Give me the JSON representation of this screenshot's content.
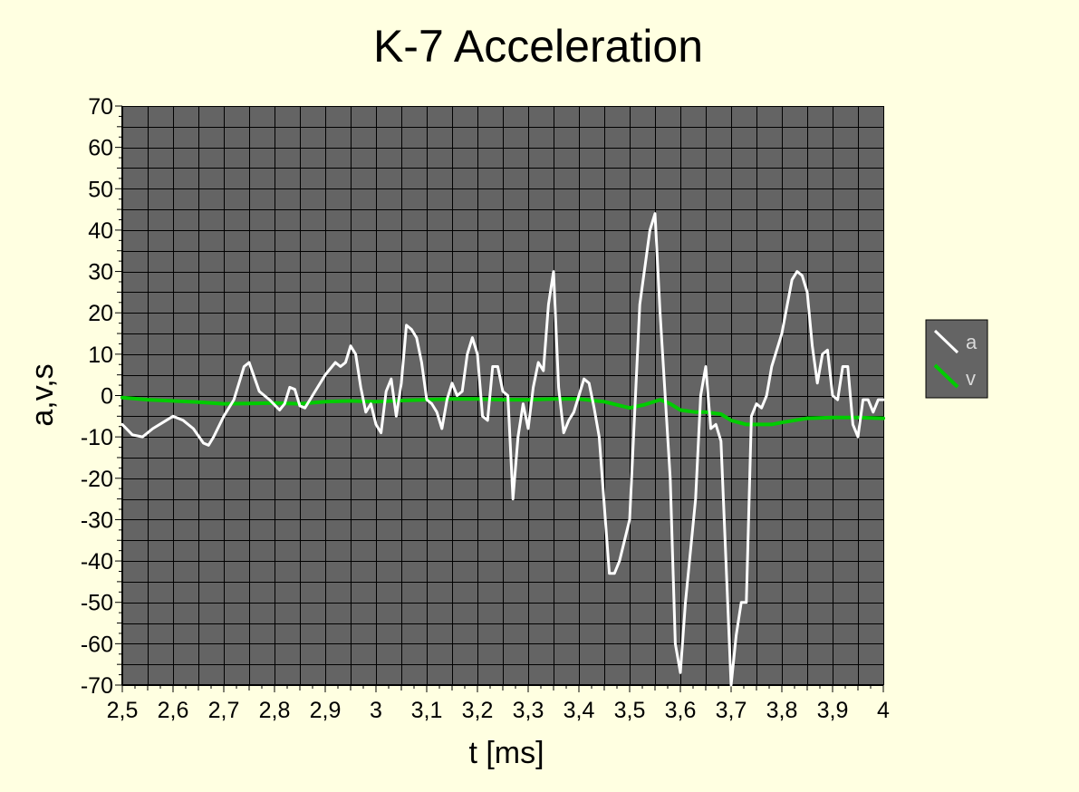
{
  "chart_data": {
    "type": "line",
    "title": "K-7 Acceleration",
    "xlabel": "t [ms]",
    "ylabel": "a,v,s",
    "xlim": [
      2.5,
      4.0
    ],
    "ylim": [
      -70,
      70
    ],
    "x_ticks": [
      "2,5",
      "2,6",
      "2,7",
      "2,8",
      "2,9",
      "3",
      "3,1",
      "3,2",
      "3,3",
      "3,4",
      "3,5",
      "3,6",
      "3,7",
      "3,8",
      "3,9",
      "4"
    ],
    "y_ticks": [
      "70",
      "60",
      "50",
      "40",
      "30",
      "20",
      "10",
      "0",
      "-10",
      "-20",
      "-30",
      "-40",
      "-50",
      "-60",
      "-70"
    ],
    "grid": true,
    "legend_position": "right",
    "background_color": "#ffffe1",
    "plot_background_color": "#646464",
    "series": [
      {
        "name": "a",
        "color": "#ffffff",
        "points": [
          [
            2.5,
            -7
          ],
          [
            2.52,
            -9.5
          ],
          [
            2.54,
            -10
          ],
          [
            2.56,
            -8
          ],
          [
            2.58,
            -6.5
          ],
          [
            2.6,
            -5
          ],
          [
            2.62,
            -6
          ],
          [
            2.64,
            -8
          ],
          [
            2.66,
            -11.5
          ],
          [
            2.67,
            -12
          ],
          [
            2.68,
            -10
          ],
          [
            2.7,
            -5
          ],
          [
            2.72,
            -1
          ],
          [
            2.73,
            3
          ],
          [
            2.74,
            7
          ],
          [
            2.75,
            8
          ],
          [
            2.77,
            1
          ],
          [
            2.79,
            -1
          ],
          [
            2.81,
            -3.5
          ],
          [
            2.82,
            -2
          ],
          [
            2.83,
            2
          ],
          [
            2.84,
            1.5
          ],
          [
            2.85,
            -2.5
          ],
          [
            2.86,
            -3
          ],
          [
            2.88,
            1
          ],
          [
            2.9,
            5
          ],
          [
            2.92,
            8
          ],
          [
            2.93,
            7
          ],
          [
            2.94,
            8
          ],
          [
            2.95,
            12
          ],
          [
            2.96,
            10
          ],
          [
            2.97,
            2
          ],
          [
            2.98,
            -4
          ],
          [
            2.99,
            -2
          ],
          [
            3.0,
            -7
          ],
          [
            3.01,
            -9
          ],
          [
            3.02,
            1
          ],
          [
            3.03,
            4
          ],
          [
            3.04,
            -5
          ],
          [
            3.05,
            3
          ],
          [
            3.06,
            17
          ],
          [
            3.07,
            16
          ],
          [
            3.08,
            14
          ],
          [
            3.09,
            8
          ],
          [
            3.1,
            -1
          ],
          [
            3.11,
            -2
          ],
          [
            3.12,
            -4
          ],
          [
            3.13,
            -8
          ],
          [
            3.14,
            -1
          ],
          [
            3.15,
            3
          ],
          [
            3.16,
            0
          ],
          [
            3.17,
            1
          ],
          [
            3.18,
            10
          ],
          [
            3.19,
            14
          ],
          [
            3.2,
            10
          ],
          [
            3.21,
            -5
          ],
          [
            3.22,
            -6
          ],
          [
            3.23,
            7
          ],
          [
            3.24,
            7
          ],
          [
            3.25,
            1
          ],
          [
            3.26,
            0
          ],
          [
            3.27,
            -25
          ],
          [
            3.28,
            -10
          ],
          [
            3.29,
            -2
          ],
          [
            3.3,
            -8
          ],
          [
            3.31,
            2
          ],
          [
            3.32,
            8
          ],
          [
            3.33,
            6
          ],
          [
            3.34,
            22
          ],
          [
            3.35,
            30
          ],
          [
            3.36,
            2
          ],
          [
            3.37,
            -9
          ],
          [
            3.38,
            -6
          ],
          [
            3.39,
            -4
          ],
          [
            3.4,
            0
          ],
          [
            3.41,
            4
          ],
          [
            3.42,
            3
          ],
          [
            3.43,
            -3
          ],
          [
            3.44,
            -10
          ],
          [
            3.46,
            -43
          ],
          [
            3.47,
            -43
          ],
          [
            3.48,
            -40
          ],
          [
            3.5,
            -30
          ],
          [
            3.52,
            22
          ],
          [
            3.54,
            40
          ],
          [
            3.55,
            44
          ],
          [
            3.56,
            20
          ],
          [
            3.58,
            -20
          ],
          [
            3.59,
            -60
          ],
          [
            3.6,
            -67
          ],
          [
            3.61,
            -50
          ],
          [
            3.63,
            -25
          ],
          [
            3.64,
            0
          ],
          [
            3.65,
            7
          ],
          [
            3.66,
            -8
          ],
          [
            3.67,
            -7
          ],
          [
            3.68,
            -11
          ],
          [
            3.7,
            -70
          ],
          [
            3.71,
            -58
          ],
          [
            3.72,
            -50
          ],
          [
            3.73,
            -50
          ],
          [
            3.74,
            -5
          ],
          [
            3.75,
            -2
          ],
          [
            3.76,
            -3
          ],
          [
            3.77,
            0
          ],
          [
            3.78,
            7
          ],
          [
            3.8,
            15
          ],
          [
            3.82,
            28
          ],
          [
            3.83,
            30
          ],
          [
            3.84,
            29
          ],
          [
            3.85,
            25
          ],
          [
            3.86,
            12
          ],
          [
            3.87,
            3
          ],
          [
            3.88,
            10
          ],
          [
            3.89,
            11
          ],
          [
            3.9,
            0
          ],
          [
            3.91,
            -1
          ],
          [
            3.92,
            7
          ],
          [
            3.93,
            7
          ],
          [
            3.94,
            -7
          ],
          [
            3.95,
            -10
          ],
          [
            3.96,
            -1
          ],
          [
            3.97,
            -1
          ],
          [
            3.98,
            -4
          ],
          [
            3.99,
            -1
          ],
          [
            4.0,
            -1
          ]
        ]
      },
      {
        "name": "v",
        "color": "#00cc00",
        "points": [
          [
            2.5,
            -0.5
          ],
          [
            2.55,
            -1
          ],
          [
            2.6,
            -1.3
          ],
          [
            2.65,
            -1.6
          ],
          [
            2.7,
            -2
          ],
          [
            2.75,
            -1.9
          ],
          [
            2.8,
            -1.8
          ],
          [
            2.85,
            -2
          ],
          [
            2.9,
            -1.5
          ],
          [
            2.95,
            -1.3
          ],
          [
            3.0,
            -1.5
          ],
          [
            3.05,
            -1.2
          ],
          [
            3.1,
            -1
          ],
          [
            3.15,
            -0.8
          ],
          [
            3.2,
            -0.8
          ],
          [
            3.25,
            -1
          ],
          [
            3.3,
            -1
          ],
          [
            3.35,
            -0.8
          ],
          [
            3.4,
            -0.8
          ],
          [
            3.45,
            -1.5
          ],
          [
            3.5,
            -3
          ],
          [
            3.53,
            -2.2
          ],
          [
            3.56,
            -1
          ],
          [
            3.58,
            -2
          ],
          [
            3.6,
            -3.5
          ],
          [
            3.63,
            -4
          ],
          [
            3.65,
            -4
          ],
          [
            3.68,
            -4.5
          ],
          [
            3.7,
            -6
          ],
          [
            3.73,
            -7
          ],
          [
            3.75,
            -7
          ],
          [
            3.78,
            -7
          ],
          [
            3.8,
            -6.5
          ],
          [
            3.85,
            -5.5
          ],
          [
            3.9,
            -5.3
          ],
          [
            3.95,
            -5.3
          ],
          [
            4.0,
            -5.5
          ]
        ]
      }
    ]
  }
}
